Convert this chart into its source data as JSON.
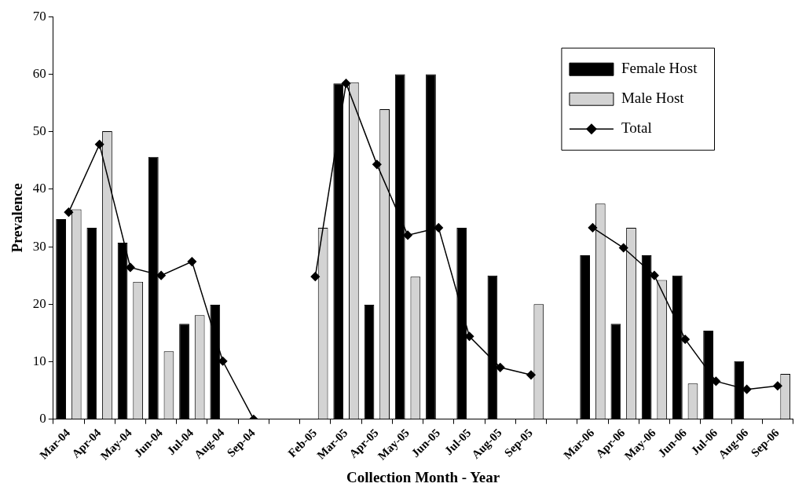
{
  "chart_data": {
    "type": "bar",
    "xlabel": "Collection Month - Year",
    "ylabel": "Prevalence",
    "categories": [
      "Mar-04",
      "Apr-04",
      "May-04",
      "Jun-04",
      "Jul-04",
      "Aug-04",
      "Sep-04",
      null,
      "Feb-05",
      "Mar-05",
      "Apr-05",
      "May-05",
      "Jun-05",
      "Jul-05",
      "Aug-05",
      "Sep-05",
      null,
      "Mar-06",
      "Apr-06",
      "May-06",
      "Jun-06",
      "Jul-06",
      "Aug-06",
      "Sep-06"
    ],
    "series": [
      {
        "name": "Female Host",
        "color": "#000000",
        "values": [
          34.8,
          33.3,
          30.7,
          45.6,
          16.6,
          19.9,
          null,
          null,
          null,
          58.4,
          19.9,
          60,
          60,
          33.3,
          25,
          null,
          null,
          28.5,
          16.6,
          28.5,
          25,
          15.4,
          10.1,
          null
        ]
      },
      {
        "name": "Male Host",
        "color": "#d3d3d3",
        "values": [
          36.5,
          50.1,
          23.9,
          11.8,
          18.1,
          null,
          null,
          null,
          33.3,
          58.6,
          53.9,
          24.8,
          null,
          null,
          null,
          20,
          null,
          37.5,
          33.3,
          24.2,
          6.2,
          null,
          null,
          7.9
        ]
      },
      {
        "name": "Total",
        "type": "line",
        "color": "#000000",
        "marker": "diamond",
        "values": [
          36,
          47.8,
          26.4,
          25,
          27.4,
          10.1,
          0,
          null,
          24.8,
          58.4,
          44.3,
          32,
          33.3,
          14.4,
          9,
          7.7,
          null,
          33.3,
          29.8,
          25,
          13.9,
          6.6,
          5.2,
          5.8
        ]
      }
    ],
    "ylim": [
      0,
      70
    ],
    "yticks": [
      0,
      10,
      20,
      30,
      40,
      50,
      60,
      70
    ],
    "grid": false,
    "legend": "top right"
  }
}
